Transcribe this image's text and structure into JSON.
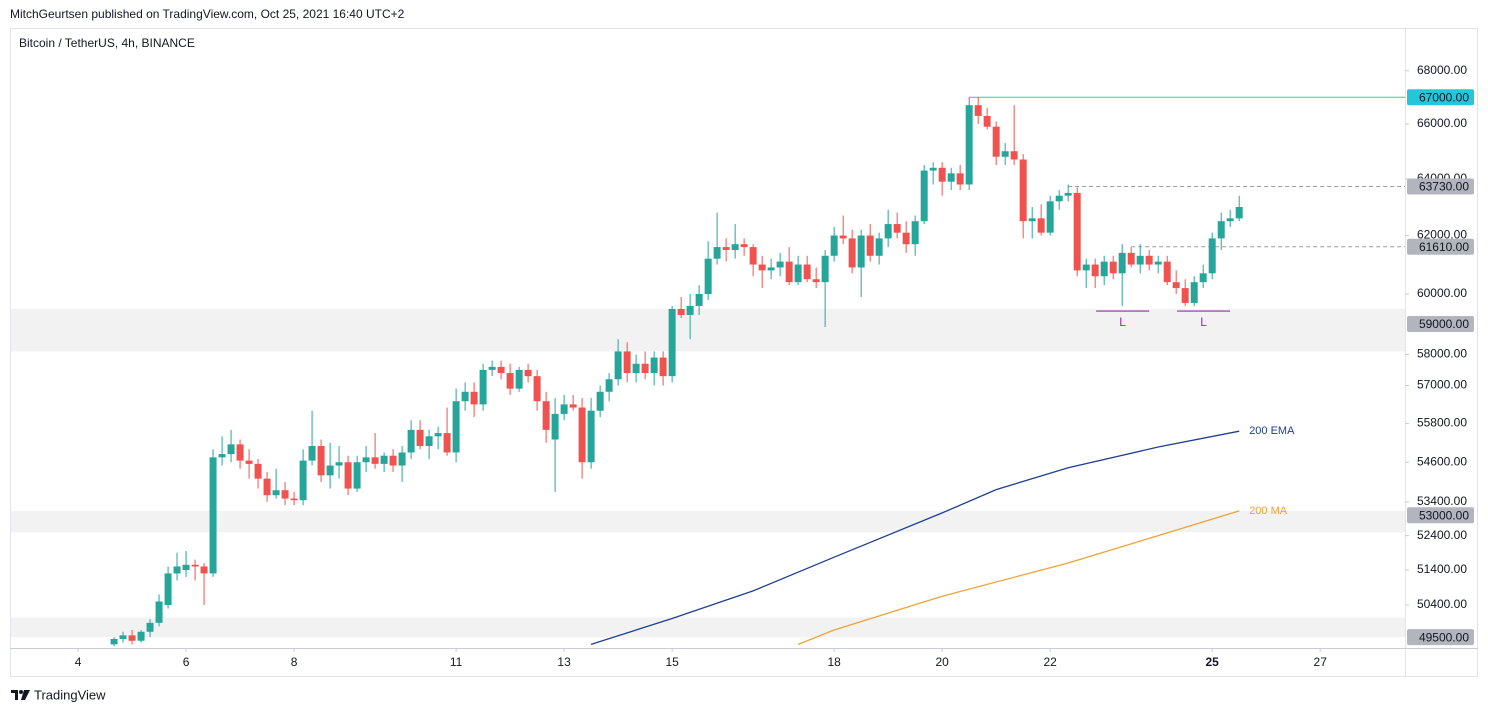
{
  "header": {
    "publisher": "MitchGeurtsen published on TradingView.com, Oct 25, 2021 16:40 UTC+2",
    "brand": "TradingView"
  },
  "chart_data": {
    "type": "candlestick",
    "title": "Bitcoin / TetherUS, 4h, BINANCE",
    "log_scale": true,
    "grid": false,
    "up_color": "#26a69a",
    "down_color": "#ef5350",
    "xlim": [
      2.74,
      28.57
    ],
    "xticks": [
      4,
      6,
      8,
      11,
      13,
      15,
      18,
      20,
      22,
      25,
      27
    ],
    "bold_xtick": 25,
    "ylim": [
      49200,
      69650
    ],
    "yticks": [
      {
        "value": 50400,
        "label": "50400.00"
      },
      {
        "value": 51400,
        "label": "51400.00"
      },
      {
        "value": 52400,
        "label": "52400.00"
      },
      {
        "value": 53400,
        "label": "53400.00"
      },
      {
        "value": 54600,
        "label": "54600.00"
      },
      {
        "value": 55800,
        "label": "55800.00"
      },
      {
        "value": 57000,
        "label": "57000.00"
      },
      {
        "value": 58000,
        "label": "58000.00"
      },
      {
        "value": 60000,
        "label": "60000.00"
      },
      {
        "value": 62000,
        "label": "62000.00"
      },
      {
        "value": 64000,
        "label": "64000.00"
      },
      {
        "value": 66000,
        "label": "66000.00"
      },
      {
        "value": 68000,
        "label": "68000.00"
      }
    ],
    "x": [
      4.667,
      4.833,
      5,
      5.167,
      5.333,
      5.5,
      5.667,
      5.833,
      6,
      6.167,
      6.333,
      6.5,
      6.667,
      6.833,
      7,
      7.167,
      7.333,
      7.5,
      7.667,
      7.833,
      8,
      8.167,
      8.333,
      8.5,
      8.667,
      8.833,
      9,
      9.167,
      9.333,
      9.5,
      9.667,
      9.833,
      10,
      10.167,
      10.333,
      10.5,
      10.667,
      10.833,
      11,
      11.167,
      11.333,
      11.5,
      11.667,
      11.833,
      12,
      12.167,
      12.333,
      12.5,
      12.667,
      12.833,
      13,
      13.167,
      13.333,
      13.5,
      13.667,
      13.833,
      14,
      14.167,
      14.333,
      14.5,
      14.667,
      14.833,
      15,
      15.167,
      15.333,
      15.5,
      15.667,
      15.833,
      16,
      16.167,
      16.333,
      16.5,
      16.667,
      16.833,
      17,
      17.167,
      17.333,
      17.5,
      17.667,
      17.833,
      18,
      18.167,
      18.333,
      18.5,
      18.667,
      18.833,
      19,
      19.167,
      19.333,
      19.5,
      19.667,
      19.833,
      20,
      20.167,
      20.333,
      20.5,
      20.667,
      20.833,
      21,
      21.167,
      21.333,
      21.5,
      21.667,
      21.833,
      22,
      22.167,
      22.333,
      22.5,
      22.667,
      22.833,
      23,
      23.167,
      23.333,
      23.5,
      23.667,
      23.833,
      24,
      24.167,
      24.333,
      24.5,
      24.667,
      24.833,
      25,
      25.167,
      25.333,
      25.5
    ],
    "open": [
      49300,
      49450,
      49550,
      49400,
      49650,
      49900,
      50400,
      51300,
      51400,
      51550,
      51500,
      51300,
      54750,
      54850,
      55150,
      54650,
      54550,
      54100,
      53600,
      53750,
      53500,
      53450,
      54650,
      55100,
      54200,
      54500,
      54600,
      53800,
      54600,
      54750,
      54550,
      54800,
      54500,
      54900,
      55600,
      55100,
      55400,
      55500,
      54900,
      56500,
      56800,
      56400,
      57500,
      57600,
      57400,
      56900,
      57500,
      57300,
      56500,
      55300,
      56100,
      56400,
      56300,
      54600,
      56200,
      56800,
      57200,
      58100,
      57400,
      57700,
      57400,
      57900,
      57300,
      59500,
      59300,
      59600,
      60000,
      61200,
      61600,
      61500,
      61700,
      61600,
      61000,
      60800,
      60900,
      61100,
      60400,
      61000,
      60500,
      60400,
      61300,
      62000,
      61900,
      60900,
      62000,
      61300,
      61900,
      62400,
      62100,
      61700,
      62500,
      64300,
      64400,
      63900,
      64200,
      63800,
      66700,
      66300,
      65900,
      64800,
      65000,
      64700,
      62500,
      62600,
      62100,
      63200,
      63400,
      63500,
      60800,
      61000,
      60600,
      61100,
      60700,
      61400,
      61000,
      61300,
      61000,
      61100,
      60400,
      60200,
      59700,
      60400,
      60700,
      61900,
      62500,
      62600
    ],
    "high": [
      49500,
      49650,
      49700,
      49700,
      50000,
      50700,
      51500,
      51900,
      51950,
      51700,
      51600,
      55000,
      55400,
      55600,
      55300,
      55000,
      54700,
      54300,
      54400,
      54000,
      53700,
      55000,
      56200,
      55300,
      55200,
      55100,
      54800,
      54800,
      55100,
      55500,
      54900,
      55000,
      55100,
      55900,
      55900,
      55600,
      55700,
      56300,
      56900,
      57100,
      57100,
      57700,
      57800,
      57800,
      57700,
      57600,
      57700,
      57500,
      56800,
      56600,
      56700,
      56700,
      56600,
      56600,
      57000,
      57400,
      58500,
      58400,
      58000,
      58100,
      58100,
      58100,
      59600,
      59900,
      60000,
      60300,
      61800,
      62800,
      61900,
      62400,
      61900,
      61700,
      61300,
      61200,
      61400,
      61600,
      61300,
      61300,
      60900,
      61500,
      62300,
      62700,
      62200,
      62200,
      62400,
      62100,
      62900,
      62800,
      62500,
      62700,
      64500,
      64600,
      64600,
      64400,
      64500,
      67000,
      67000,
      66600,
      66100,
      65300,
      66700,
      64900,
      63000,
      63100,
      63400,
      63600,
      63800,
      63700,
      61200,
      61200,
      61300,
      61300,
      61700,
      61600,
      61700,
      61500,
      61300,
      61300,
      60800,
      60500,
      60600,
      61000,
      62100,
      62800,
      62900,
      63400
    ],
    "low": [
      49250,
      49350,
      49300,
      49350,
      49500,
      49800,
      50300,
      51100,
      51200,
      51100,
      50400,
      51200,
      54500,
      54600,
      54400,
      54100,
      53800,
      53400,
      53500,
      53300,
      53300,
      53300,
      54500,
      54000,
      53800,
      54100,
      53600,
      53700,
      54300,
      54400,
      54300,
      54300,
      54000,
      54700,
      55000,
      54700,
      55000,
      54800,
      54600,
      56200,
      56000,
      56200,
      57300,
      57200,
      56700,
      56800,
      57100,
      56200,
      55200,
      53700,
      55900,
      56200,
      54100,
      54400,
      56000,
      56500,
      57000,
      57100,
      57100,
      57200,
      57000,
      57000,
      57100,
      59200,
      58500,
      59300,
      59800,
      61000,
      61100,
      61200,
      61300,
      60600,
      60200,
      60500,
      60600,
      60300,
      60300,
      60400,
      60200,
      58900,
      61100,
      61700,
      60700,
      59900,
      61100,
      61000,
      61600,
      61900,
      61400,
      61300,
      62400,
      63800,
      63400,
      63600,
      63600,
      63600,
      66000,
      65800,
      64500,
      64500,
      64500,
      61900,
      61900,
      62000,
      62000,
      62900,
      63200,
      60600,
      60200,
      60200,
      60300,
      60500,
      59600,
      60900,
      60700,
      60800,
      60700,
      60300,
      60000,
      59600,
      59600,
      60200,
      60500,
      61500,
      62300,
      62500
    ],
    "close": [
      49450,
      49550,
      49400,
      49650,
      49900,
      50500,
      51300,
      51500,
      51550,
      51500,
      51300,
      54750,
      54850,
      55150,
      54650,
      54550,
      54100,
      53600,
      53750,
      53500,
      53450,
      54650,
      55100,
      54200,
      54500,
      54600,
      53800,
      54600,
      54750,
      54550,
      54800,
      54500,
      54900,
      55600,
      55100,
      55400,
      55500,
      54900,
      56500,
      56800,
      56400,
      57500,
      57600,
      57400,
      56900,
      57500,
      57300,
      56500,
      55600,
      56100,
      56400,
      56300,
      54600,
      56200,
      56800,
      57200,
      58100,
      57400,
      57700,
      57400,
      57900,
      57300,
      59500,
      59300,
      59600,
      60000,
      61200,
      61600,
      61500,
      61700,
      61600,
      61000,
      60800,
      60900,
      61100,
      60400,
      61000,
      60500,
      60400,
      61300,
      62000,
      61900,
      60900,
      62000,
      61300,
      61900,
      62400,
      62100,
      61700,
      62500,
      64300,
      64400,
      63900,
      64200,
      63800,
      66700,
      66300,
      65900,
      64800,
      65000,
      64700,
      62500,
      62600,
      62100,
      63200,
      63400,
      63500,
      60800,
      61000,
      60600,
      61100,
      60700,
      61400,
      61000,
      61300,
      61000,
      61100,
      60400,
      60200,
      59700,
      60400,
      60700,
      61900,
      62500,
      62600,
      63000
    ],
    "series": [
      {
        "name": "200 EMA",
        "color": "#1e3f91",
        "x": [
          13.5,
          15,
          16.5,
          18,
          20,
          21,
          22.333,
          24,
          25.5
        ],
        "values": [
          49300,
          50020,
          50800,
          51770,
          53070,
          53770,
          54430,
          55070,
          55560
        ]
      },
      {
        "name": "200 MA",
        "color": "#f0a23a",
        "x": [
          17.333,
          18,
          20,
          22.333,
          24,
          25.5
        ],
        "values": [
          49300,
          49700,
          50650,
          51600,
          52400,
          53130
        ]
      }
    ],
    "zones": [
      {
        "from": 58100,
        "to": 59500
      },
      {
        "from": 52500,
        "to": 53130
      },
      {
        "from": 49500,
        "to": 50050
      }
    ],
    "lines": [
      {
        "value": 67000,
        "from": 20.5,
        "color": "#26c6da",
        "dashed": false
      },
      {
        "value": 63730,
        "from": 22.333,
        "color": "#9e9e9e",
        "dashed": true
      },
      {
        "value": 61610,
        "from": 23.5,
        "color": "#9e9e9e",
        "dashed": true
      }
    ],
    "price_tags": [
      {
        "value": 67000,
        "label": "67000.00",
        "color": "#26c6da"
      },
      {
        "value": 63730,
        "label": "63730.00",
        "color": "#b2b5be"
      },
      {
        "value": 61610,
        "label": "61610.00",
        "color": "#b2b5be"
      },
      {
        "value": 59000,
        "label": "59000.00",
        "color": "#b2b5be"
      },
      {
        "value": 53000,
        "label": "53000.00",
        "color": "#b2b5be"
      },
      {
        "value": 49500,
        "label": "49500.00",
        "color": "#b2b5be"
      }
    ],
    "annotations": [
      {
        "text": "L",
        "from": 22.85,
        "to": 23.833,
        "value": 59430,
        "color": "#9c27b0"
      },
      {
        "text": "L",
        "from": 24.35,
        "to": 25.33,
        "value": 59430,
        "color": "#9c27b0"
      }
    ]
  }
}
